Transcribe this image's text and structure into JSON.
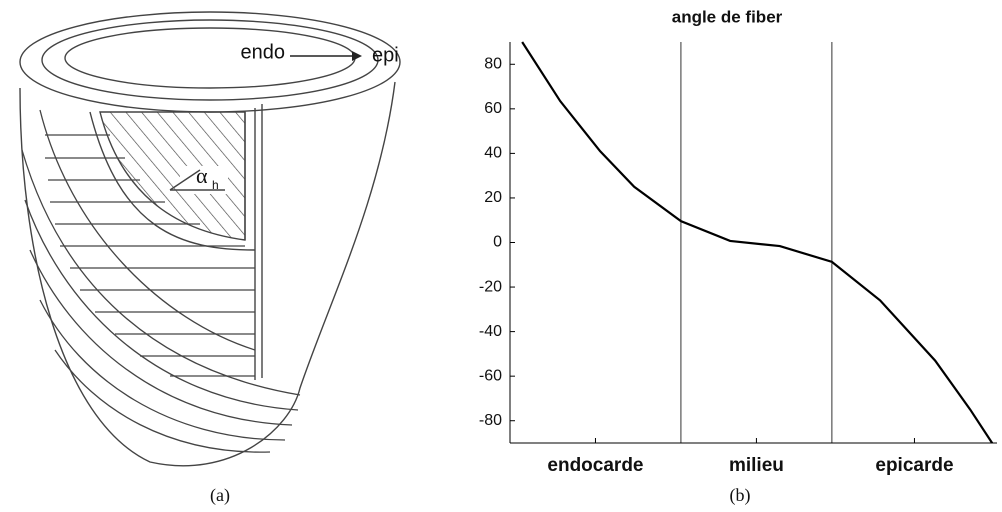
{
  "diagram": {
    "label_inner": "endo",
    "label_outer": "epi",
    "angle_symbol": "α",
    "angle_subscript": "h",
    "caption": "(a)"
  },
  "chart_data": {
    "type": "line",
    "title": "angle de fiber",
    "caption": "(b)",
    "x": [
      0.025,
      0.103,
      0.185,
      0.255,
      0.351,
      0.452,
      0.554,
      0.661,
      0.76,
      0.873,
      0.945,
      0.99
    ],
    "series": [
      {
        "color": "#000000",
        "values": [
          90,
          63.5,
          41,
          25,
          9.6,
          0.7,
          -1.6,
          -8.7,
          -26,
          -53,
          -75,
          -90
        ]
      }
    ],
    "xlim": [
      0,
      1
    ],
    "ylim": [
      -90,
      90
    ],
    "yticks": [
      -80,
      -60,
      -40,
      -20,
      0,
      20,
      40,
      60,
      80
    ],
    "categories": [
      "endocarde",
      "milieu",
      "epicarde"
    ],
    "category_bounds": [
      0,
      0.351,
      0.661,
      1
    ]
  }
}
